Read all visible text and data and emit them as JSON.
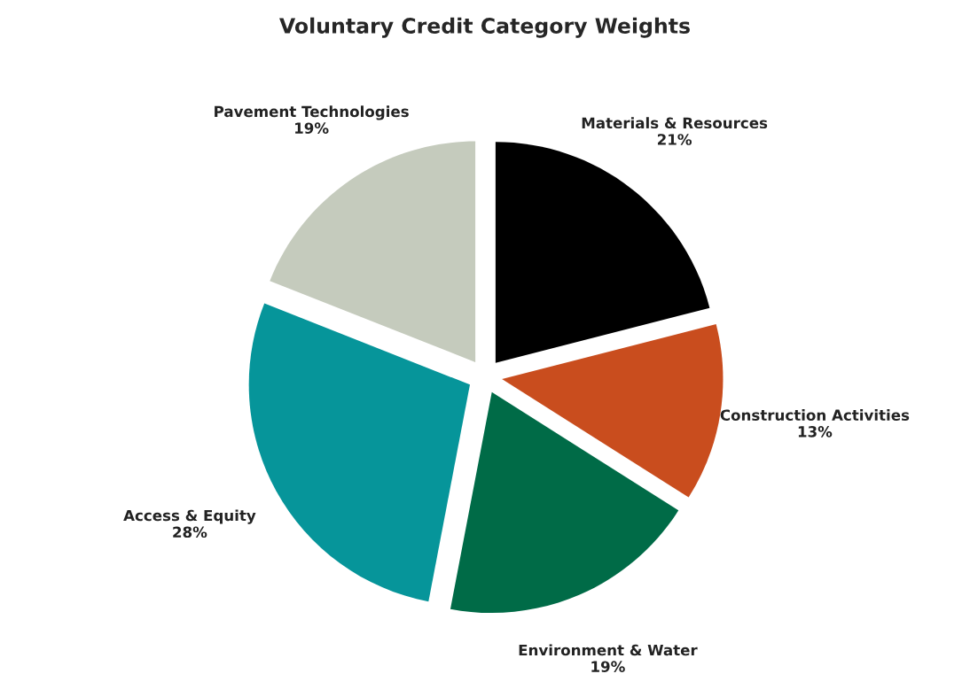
{
  "chart_data": {
    "type": "pie",
    "title": "Voluntary Credit Category Weights",
    "categories": [
      "Materials & Resources",
      "Construction Activities",
      "Environment & Water",
      "Access & Equity",
      "Pavement Technologies"
    ],
    "values": [
      21,
      13,
      19,
      28,
      19
    ],
    "colors": [
      "#000000",
      "#c94d1e",
      "#006b47",
      "#06959a",
      "#c5cbbd"
    ],
    "value_labels": [
      "21%",
      "13%",
      "19%",
      "28%",
      "19%"
    ]
  }
}
